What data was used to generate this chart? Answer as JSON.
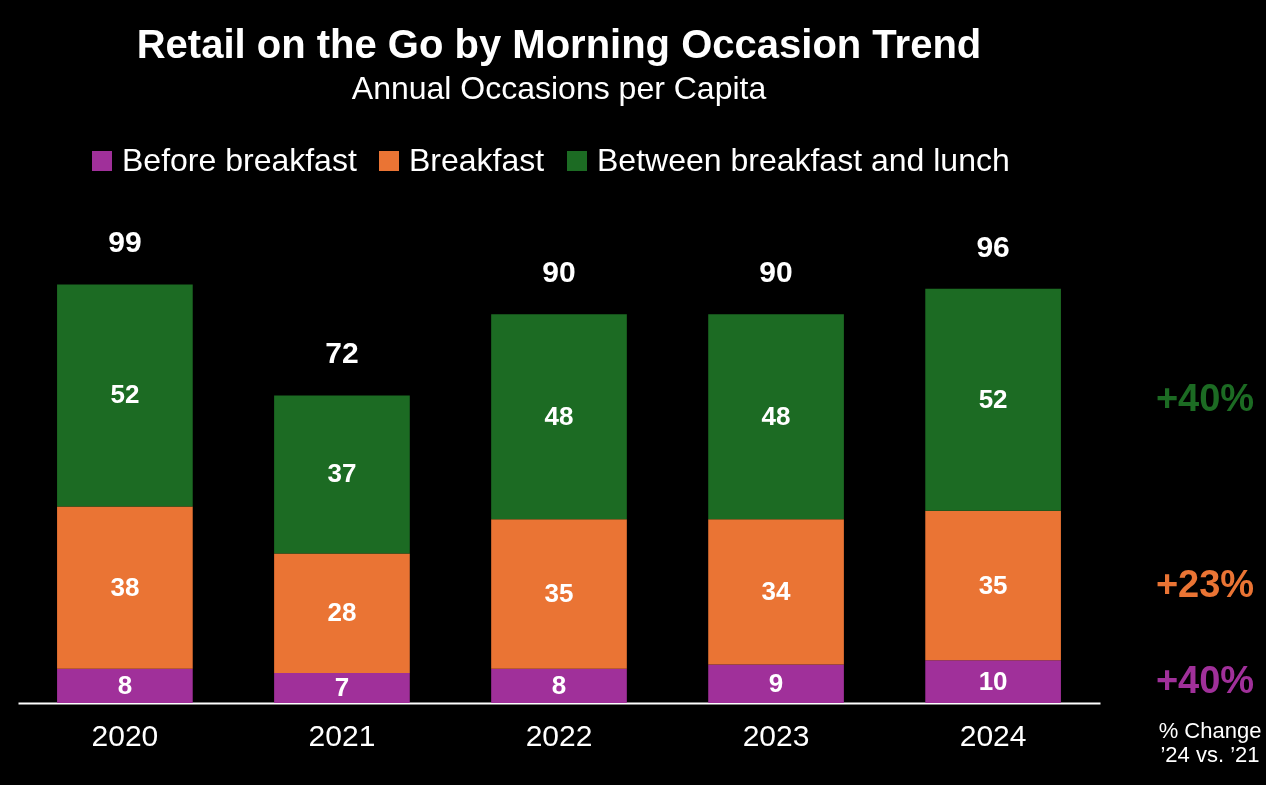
{
  "chart_data": {
    "type": "bar",
    "title": "Retail on the Go by Morning Occasion Trend",
    "subtitle": "Annual Occasions per Capita",
    "categories": [
      "2020",
      "2021",
      "2022",
      "2023",
      "2024"
    ],
    "stacked": true,
    "data_labels": true,
    "legend": "top",
    "series": [
      {
        "name": "Before breakfast",
        "color": "#a0309a",
        "values": [
          8,
          7,
          8,
          9,
          10
        ]
      },
      {
        "name": "Breakfast",
        "color": "#ea7434",
        "values": [
          38,
          28,
          35,
          34,
          35
        ]
      },
      {
        "name": "Between breakfast and lunch",
        "color": "#1c6b23",
        "values": [
          52,
          37,
          48,
          48,
          52
        ]
      }
    ],
    "totals": [
      "99",
      "72",
      "90",
      "90",
      "96"
    ],
    "annotations": [
      "+40%",
      "+23%",
      "+40%",
      "% Change\n’24 vs. ’21"
    ]
  }
}
